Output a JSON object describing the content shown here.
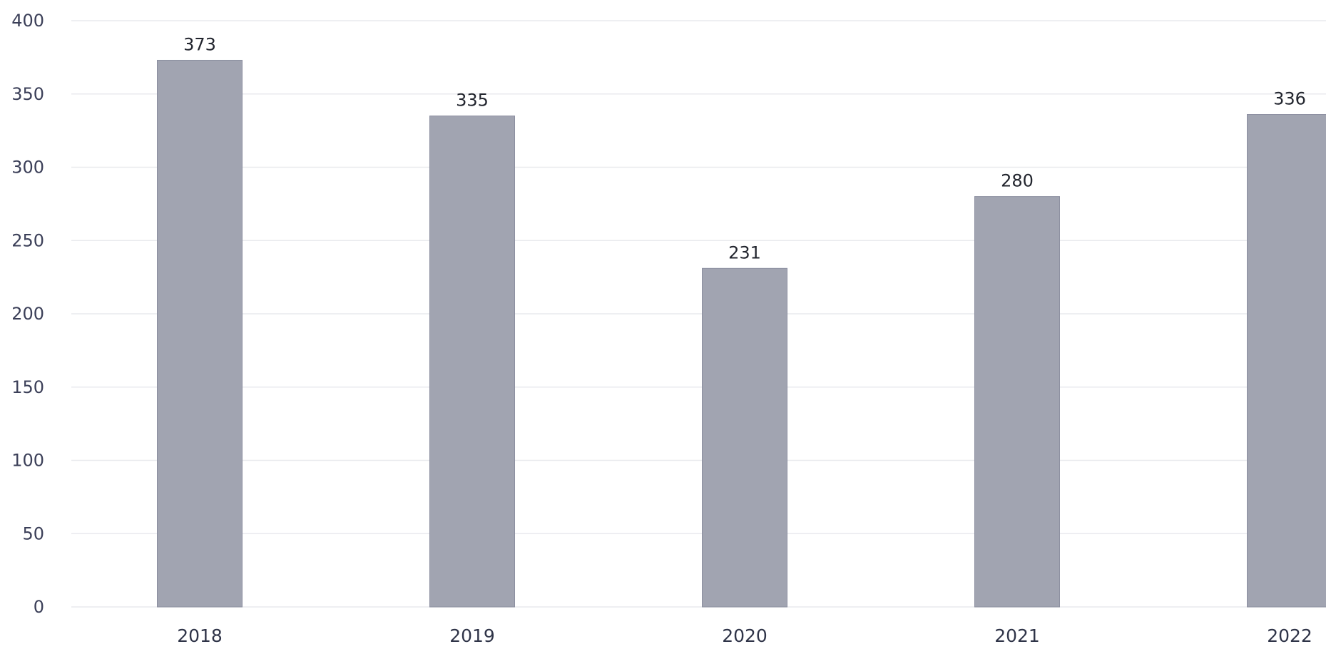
{
  "chart_data": {
    "type": "bar",
    "categories": [
      "2018",
      "2019",
      "2020",
      "2021",
      "2022"
    ],
    "values": [
      373,
      335,
      231,
      280,
      336
    ],
    "title": "",
    "xlabel": "",
    "ylabel": "",
    "ylim": [
      0,
      400
    ],
    "yticks": [
      0,
      50,
      100,
      150,
      200,
      250,
      300,
      350,
      400
    ],
    "grid": true,
    "legend": "none",
    "data_labels": true,
    "bar_color": "#a1a4b1",
    "bar_edge_color": "#8c8fa0",
    "tick_color": "#3b3f58",
    "background": "#ffffff"
  }
}
